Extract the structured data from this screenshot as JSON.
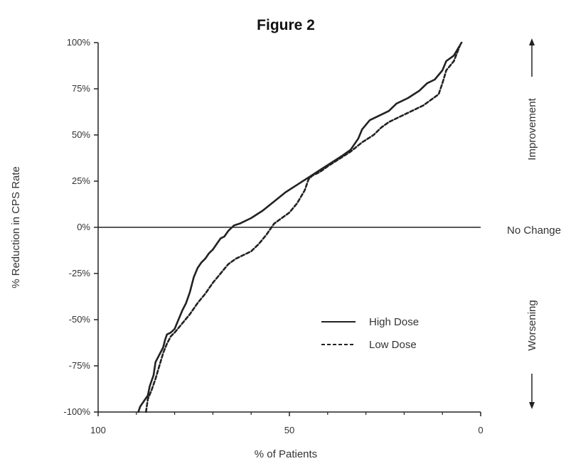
{
  "chart_data": {
    "type": "line",
    "title": "Figure 2",
    "xlabel": "% of Patients",
    "ylabel": "% Reduction in CPS Rate",
    "xlim": [
      100,
      0
    ],
    "ylim": [
      -100,
      100
    ],
    "x_ticks": [
      {
        "value": 100,
        "label": "100"
      },
      {
        "value": 50,
        "label": "50"
      },
      {
        "value": 0,
        "label": "0"
      }
    ],
    "y_ticks": [
      {
        "value": 100,
        "label": "100%"
      },
      {
        "value": 75,
        "label": "75%"
      },
      {
        "value": 50,
        "label": "50%"
      },
      {
        "value": 25,
        "label": "25%"
      },
      {
        "value": 0,
        "label": "0%"
      },
      {
        "value": -25,
        "label": "-25%"
      },
      {
        "value": -50,
        "label": "-50%"
      },
      {
        "value": -75,
        "label": "-75%"
      },
      {
        "value": -100,
        "label": "-100%"
      }
    ],
    "reference_line": {
      "y": 0
    },
    "legend_position": "lower-right",
    "series": [
      {
        "name": "High Dose",
        "style": "solid",
        "color": "#222222",
        "x": [
          89.5,
          89,
          88,
          87,
          86.5,
          85.5,
          85,
          84,
          83,
          82.5,
          82,
          81,
          80,
          79,
          78,
          77,
          76.5,
          76,
          75,
          74,
          73,
          72,
          71,
          70,
          69,
          68,
          67,
          66,
          65,
          64.5,
          63,
          60,
          57,
          54,
          51,
          48,
          45,
          42,
          39,
          36,
          34,
          32,
          31,
          29,
          26,
          24,
          22,
          19,
          16,
          14,
          12,
          10,
          9,
          7,
          5
        ],
        "y": [
          -100,
          -97,
          -94,
          -91,
          -86,
          -80,
          -73,
          -69,
          -65,
          -61,
          -58,
          -57,
          -55,
          -50,
          -45,
          -41,
          -38,
          -35,
          -27,
          -22,
          -19,
          -17,
          -14,
          -12,
          -9,
          -6,
          -5,
          -2,
          0,
          1,
          2,
          5,
          9,
          14,
          19,
          23,
          27,
          31,
          35,
          39,
          42,
          48,
          53,
          58,
          61,
          63,
          67,
          70,
          74,
          78,
          80,
          85,
          90,
          93,
          100
        ]
      },
      {
        "name": "Low Dose",
        "style": "dashed",
        "color": "#222222",
        "x": [
          87.5,
          87,
          86,
          85,
          84,
          83,
          82,
          81,
          80,
          78,
          76,
          74,
          72,
          70,
          68,
          66,
          64,
          62,
          60,
          58,
          56,
          55,
          54,
          52,
          50,
          48,
          46,
          45,
          44.5,
          44,
          42,
          40,
          37,
          34,
          31,
          28,
          26,
          24,
          21,
          18,
          15,
          13,
          11,
          10,
          9,
          7,
          5.5
        ],
        "y": [
          -100,
          -93,
          -88,
          -82,
          -75,
          -68,
          -63,
          -59,
          -57,
          -52,
          -47,
          -41,
          -36,
          -30,
          -25,
          -20,
          -17,
          -15,
          -13,
          -9,
          -4,
          -1,
          2,
          5,
          8,
          13,
          20,
          26,
          27,
          28,
          30,
          33,
          37,
          41,
          46,
          50,
          54,
          57,
          60,
          63,
          66,
          69,
          72,
          78,
          85,
          90,
          98
        ]
      }
    ]
  },
  "annotations": {
    "improvement": "Improvement",
    "no_change": "No Change",
    "worsening": "Worsening"
  }
}
